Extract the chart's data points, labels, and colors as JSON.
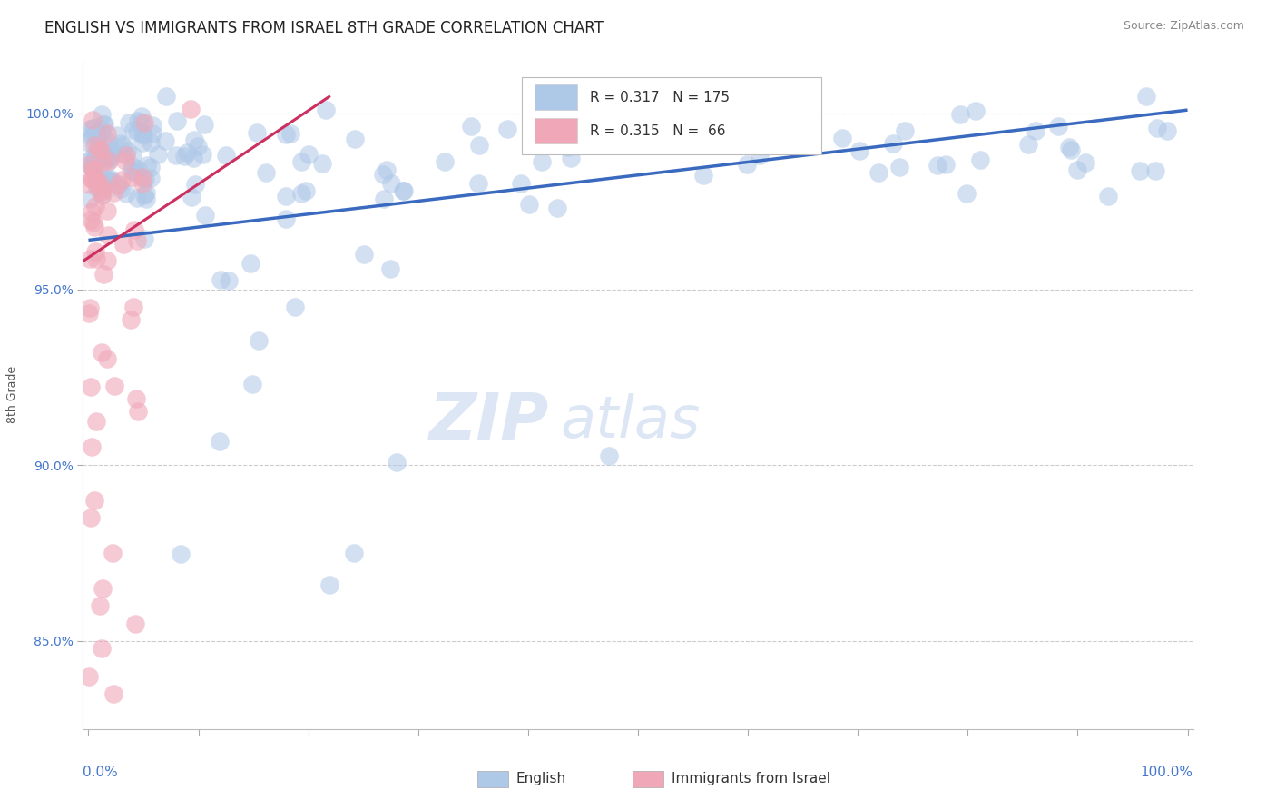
{
  "title": "ENGLISH VS IMMIGRANTS FROM ISRAEL 8TH GRADE CORRELATION CHART",
  "source": "Source: ZipAtlas.com",
  "ylabel": "8th Grade",
  "watermark_zip": "ZIP",
  "watermark_atlas": "atlas",
  "legend_english_R": "0.317",
  "legend_english_N": "175",
  "legend_israel_R": "0.315",
  "legend_israel_N": "66",
  "english_face_color": "#aec8e8",
  "english_edge_color": "#aec8e8",
  "english_line_color": "#3a6abf",
  "israel_face_color": "#f0a8b8",
  "israel_edge_color": "#f0a8b8",
  "israel_line_color": "#cc3060",
  "background_color": "#ffffff",
  "grid_color": "#cccccc",
  "ytick_color": "#4477cc",
  "xtick_color": "#4477cc",
  "title_fontsize": 12,
  "source_fontsize": 9,
  "tick_fontsize": 10,
  "ylabel_fontsize": 9,
  "legend_fontsize": 11,
  "watermark_fontsize": 52,
  "y_min": 82.5,
  "y_max": 101.5,
  "x_min": -0.005,
  "x_max": 1.005,
  "ytick_positions": [
    85.0,
    90.0,
    95.0,
    100.0
  ],
  "ytick_labels": [
    "85.0%",
    "90.0%",
    "95.0%",
    "100.0%"
  ],
  "english_line_x0": 0.0,
  "english_line_x1": 1.0,
  "english_line_y0": 96.4,
  "english_line_y1": 100.1,
  "israel_line_x0": -0.005,
  "israel_line_x1": 0.22,
  "israel_line_y0": 95.8,
  "israel_line_y1": 100.5
}
